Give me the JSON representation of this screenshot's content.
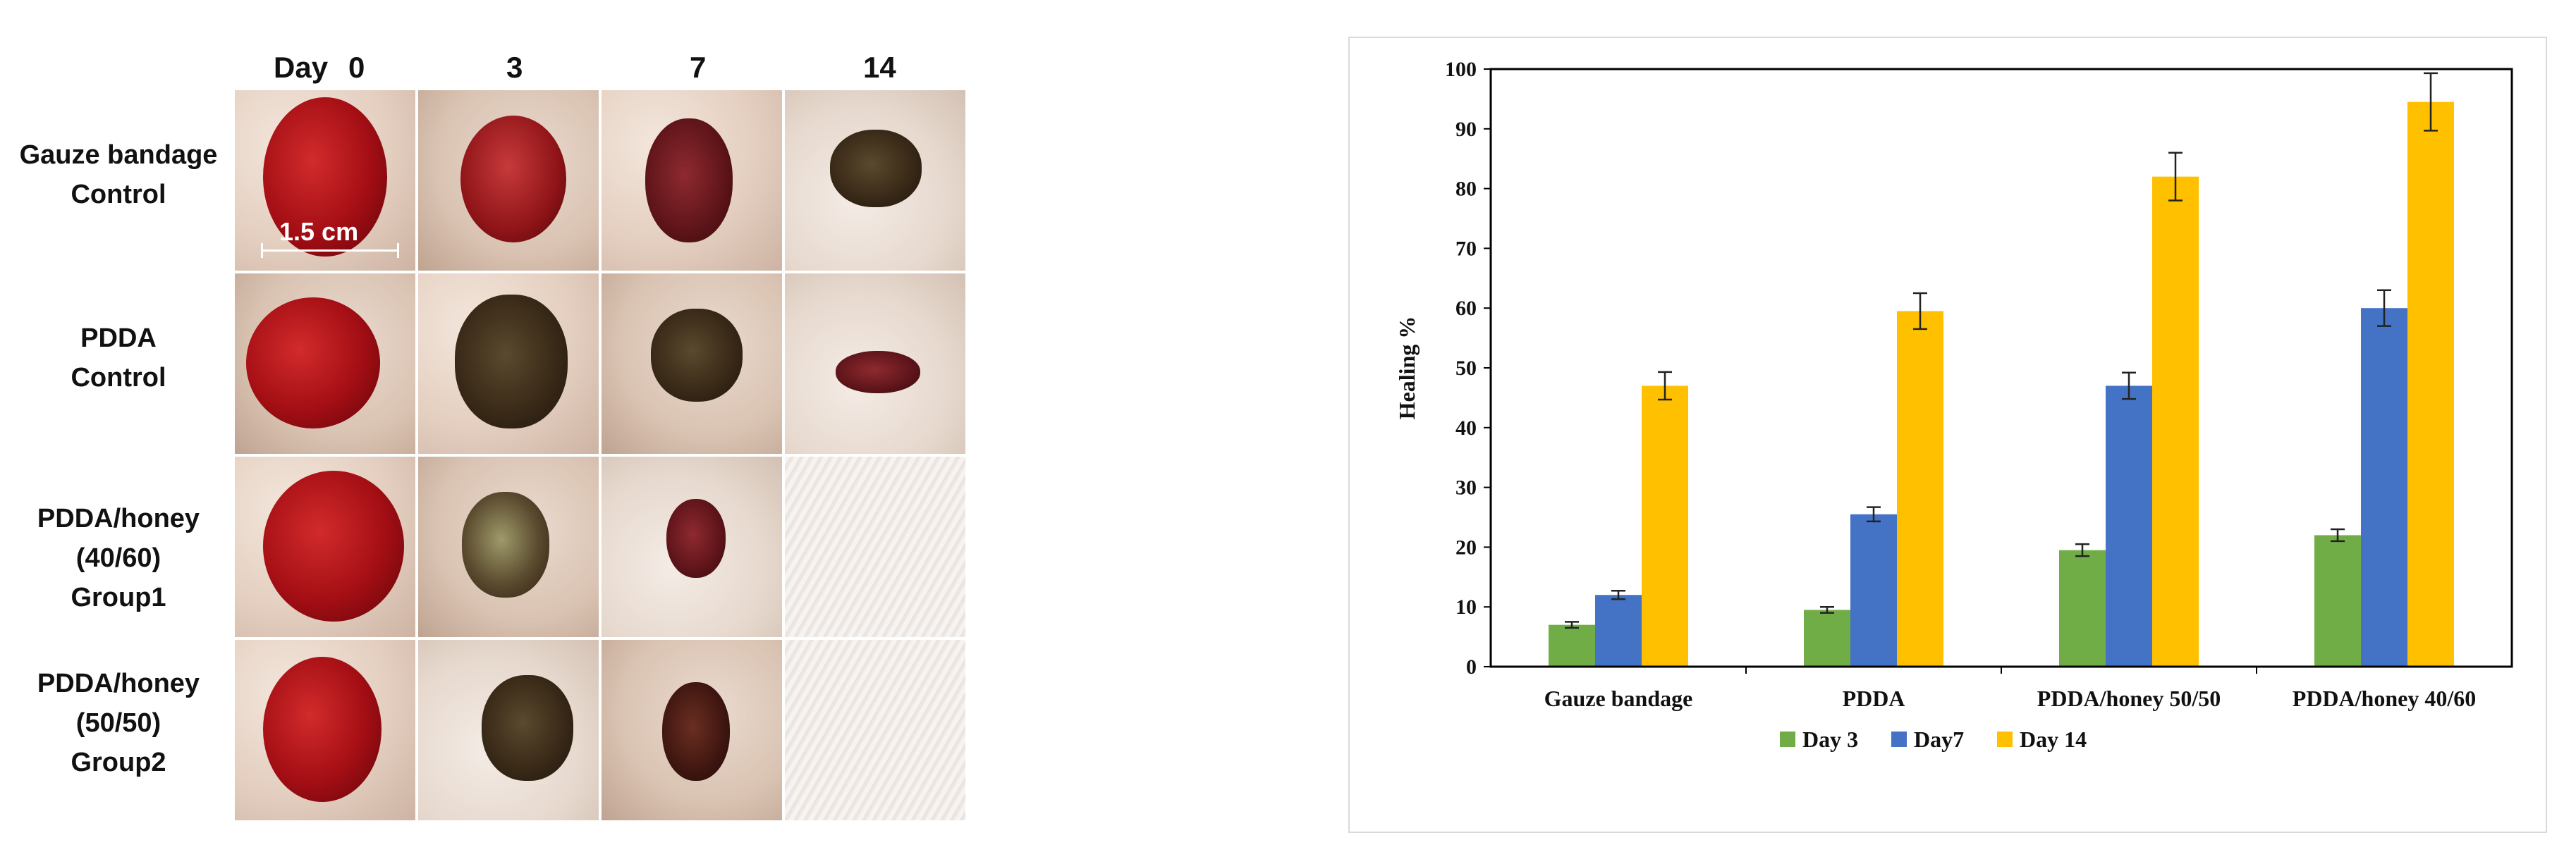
{
  "photo_panel": {
    "day_label": "Day",
    "days": [
      "0",
      "3",
      "7",
      "14"
    ],
    "rows": [
      {
        "lines": [
          "Gauze bandage",
          "Control"
        ]
      },
      {
        "lines": [
          "PDDA",
          "Control"
        ]
      },
      {
        "lines": [
          "PDDA/honey",
          "(40/60)",
          "Group1"
        ]
      },
      {
        "lines": [
          "PDDA/honey",
          "(50/50)",
          "Group2"
        ]
      }
    ],
    "scale_label": "1.5 cm"
  },
  "chart_data": {
    "type": "bar",
    "title": "",
    "xlabel": "",
    "ylabel": "Healing %",
    "ylim": [
      0,
      100
    ],
    "yticks": [
      0,
      10,
      20,
      30,
      40,
      50,
      60,
      70,
      80,
      90,
      100
    ],
    "categories": [
      "Gauze bandage",
      "PDDA",
      "PDDA/honey 50/50",
      "PDDA/honey 40/60"
    ],
    "series": [
      {
        "name": "Day 3",
        "color": "#70ad47",
        "values": [
          7,
          9.5,
          19.5,
          22
        ],
        "errors": [
          0.5,
          0.5,
          1,
          1
        ]
      },
      {
        "name": "Day7",
        "color": "#4472c4",
        "values": [
          12,
          25.5,
          47,
          60
        ],
        "errors": [
          0.7,
          1.2,
          2.2,
          3
        ]
      },
      {
        "name": "Day 14",
        "color": "#ffc000",
        "values": [
          47,
          59.5,
          82,
          94.5
        ],
        "errors": [
          2.3,
          3,
          4,
          4.8
        ]
      }
    ],
    "grid": false,
    "legend": "bottom",
    "error_bars": true
  }
}
